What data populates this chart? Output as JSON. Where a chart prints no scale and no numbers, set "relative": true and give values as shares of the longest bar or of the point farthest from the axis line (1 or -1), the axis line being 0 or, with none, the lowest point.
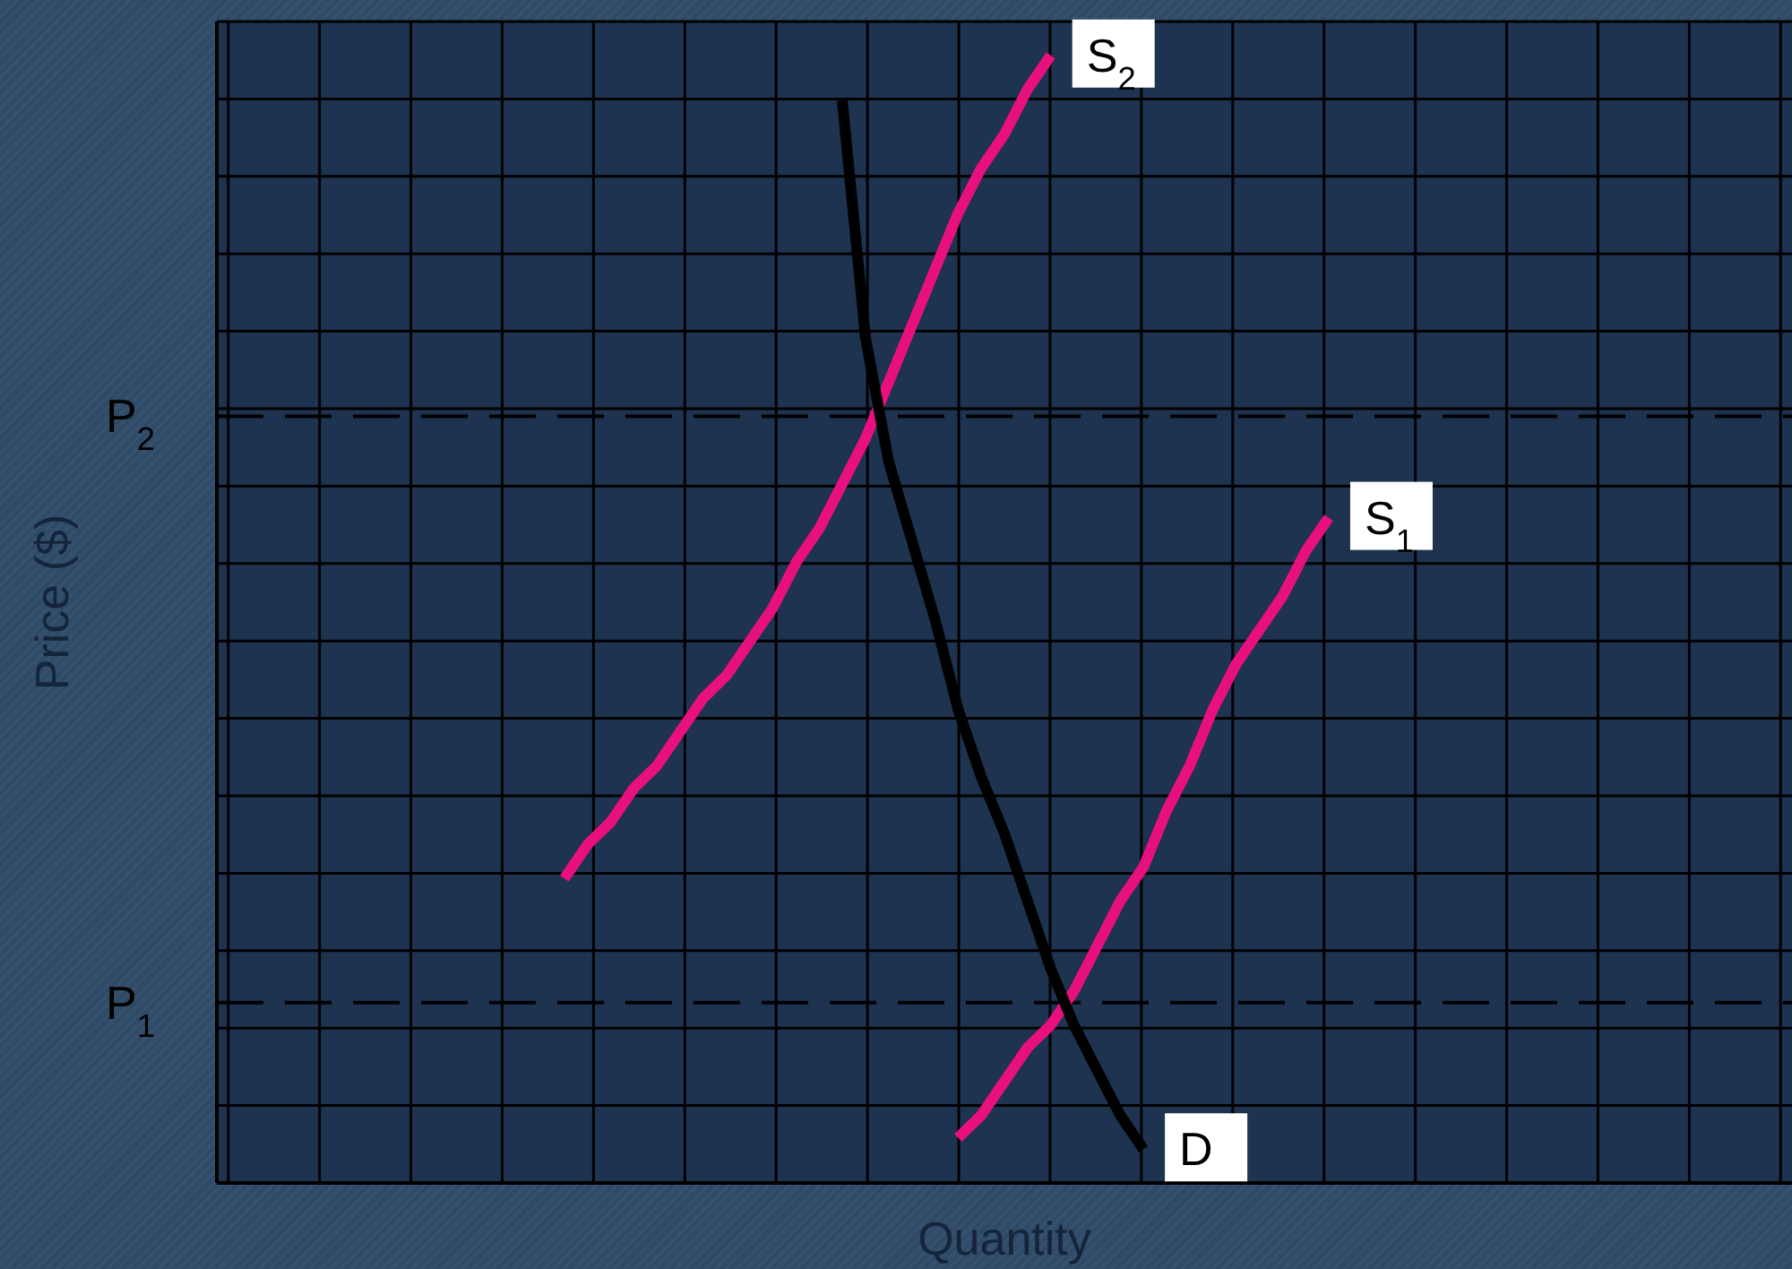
{
  "chart_data": {
    "type": "line",
    "xlabel": "Quantity",
    "ylabel": "Price ($)",
    "relative": true,
    "grid": true,
    "line_style": "solid",
    "categories": [
      null,
      null,
      null,
      null,
      null,
      null,
      null,
      null,
      null,
      null,
      null,
      null,
      null,
      null,
      null,
      null,
      null,
      null,
      null,
      null,
      null,
      null,
      null,
      null,
      null,
      null,
      null,
      null,
      null,
      null,
      null,
      null,
      null,
      null,
      null,
      null,
      null,
      null,
      null,
      null,
      null,
      null,
      null,
      null,
      null,
      null,
      null,
      null,
      null,
      null,
      null,
      null,
      null,
      null,
      null,
      null,
      null,
      null,
      null,
      null,
      null,
      null,
      null,
      null,
      null,
      null,
      null,
      null,
      null
    ],
    "series": [
      {
        "name": "S$_{2}$",
        "color": "#e8107e",
        "values": [
          null,
          null,
          null,
          null,
          null,
          null,
          null,
          null,
          null,
          null,
          null,
          null,
          null,
          null,
          null,
          0.27,
          0.3,
          0.32,
          0.35,
          0.37,
          0.4,
          0.43,
          0.45,
          0.48,
          0.51,
          0.55,
          0.58,
          0.62,
          0.66,
          0.71,
          0.76,
          0.81,
          0.86,
          0.9,
          0.93,
          0.97,
          1,
          null,
          null,
          null,
          null,
          null,
          null,
          null,
          null,
          null,
          null,
          null,
          null,
          null,
          null,
          null,
          null,
          null,
          null,
          null,
          null,
          null,
          null,
          null,
          null,
          null,
          null,
          null,
          null,
          null,
          null,
          null,
          null
        ]
      },
      {
        "name": "S$_{1}$",
        "color": "#e8107e",
        "values": [
          null,
          null,
          null,
          null,
          null,
          null,
          null,
          null,
          null,
          null,
          null,
          null,
          null,
          null,
          null,
          null,
          null,
          null,
          null,
          null,
          null,
          null,
          null,
          null,
          null,
          null,
          null,
          null,
          null,
          null,
          null,
          null,
          0.04,
          0.06,
          0.09,
          0.12,
          0.14,
          0.17,
          0.21,
          0.25,
          0.28,
          0.33,
          0.37,
          0.42,
          0.46,
          0.49,
          0.52,
          0.56,
          0.59,
          null,
          null,
          null,
          null,
          null,
          null,
          null,
          null,
          null,
          null,
          null,
          null,
          null,
          null,
          null,
          null,
          null,
          null,
          null,
          null
        ]
      },
      {
        "name": "D",
        "color": "#000000",
        "values": [
          null,
          null,
          null,
          null,
          null,
          null,
          null,
          null,
          null,
          null,
          null,
          null,
          null,
          null,
          null,
          null,
          null,
          null,
          null,
          null,
          null,
          null,
          null,
          null,
          null,
          null,
          null,
          0.96,
          0.75,
          0.64,
          0.57,
          0.5,
          0.42,
          0.36,
          0.31,
          0.25,
          0.19,
          0.14,
          0.1,
          0.06,
          0.03,
          null,
          null,
          null,
          null,
          null,
          null,
          null,
          null,
          null,
          null,
          null,
          null,
          null,
          null,
          null,
          null,
          null,
          null,
          null,
          null,
          null,
          null,
          null,
          null,
          null,
          null,
          null,
          null
        ]
      }
    ],
    "ref_lines": [
      {
        "axis": "y",
        "value": 0.68,
        "label": "P$_{2}$",
        "line_style": "dashed",
        "color": "#000000"
      },
      {
        "axis": "y",
        "value": 0.16,
        "label": "P$_{1}$",
        "line_style": "dashed",
        "color": "#000000"
      }
    ]
  }
}
